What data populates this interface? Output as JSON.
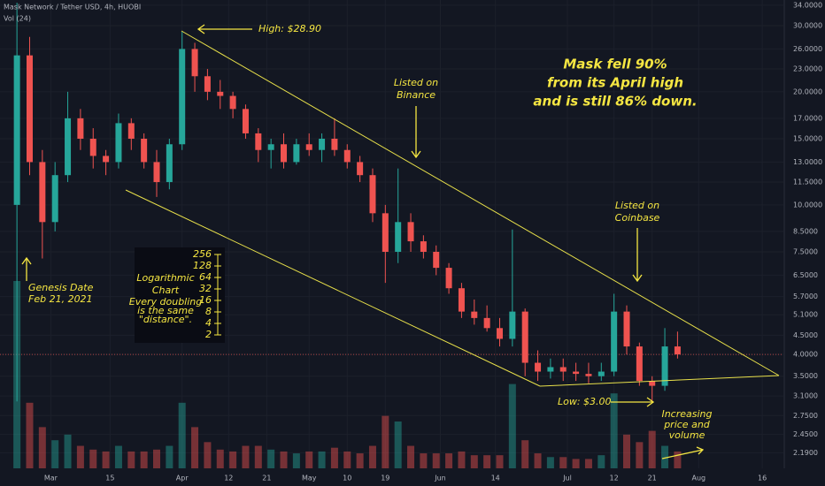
{
  "chart_data": {
    "type": "candlestick",
    "title": "Mask Network / Tether USD, 4h, HUOBI",
    "log_scale": true,
    "grid": true,
    "up_color": "#26a69a",
    "down_color": "#ef5350",
    "x": [
      "2021-02-21",
      "2021-02-24",
      "2021-02-27",
      "2021-03-02",
      "2021-03-05",
      "2021-03-08",
      "2021-03-11",
      "2021-03-14",
      "2021-03-17",
      "2021-03-20",
      "2021-03-23",
      "2021-03-26",
      "2021-03-29",
      "2021-04-01",
      "2021-04-04",
      "2021-04-07",
      "2021-04-10",
      "2021-04-13",
      "2021-04-16",
      "2021-04-19",
      "2021-04-22",
      "2021-04-25",
      "2021-04-28",
      "2021-05-01",
      "2021-05-04",
      "2021-05-07",
      "2021-05-10",
      "2021-05-13",
      "2021-05-16",
      "2021-05-19",
      "2021-05-22",
      "2021-05-25",
      "2021-05-28",
      "2021-05-31",
      "2021-06-03",
      "2021-06-06",
      "2021-06-09",
      "2021-06-12",
      "2021-06-15",
      "2021-06-18",
      "2021-06-21",
      "2021-06-24",
      "2021-06-27",
      "2021-06-30",
      "2021-07-03",
      "2021-07-06",
      "2021-07-09",
      "2021-07-12",
      "2021-07-15",
      "2021-07-18",
      "2021-07-21",
      "2021-07-24",
      "2021-07-27"
    ],
    "open": [
      10,
      25,
      13,
      9,
      12,
      17,
      15,
      13.5,
      13,
      16.5,
      15,
      13,
      11.5,
      14.5,
      26,
      22,
      20,
      19.5,
      18,
      15.5,
      14,
      14.5,
      13,
      14.5,
      14,
      15,
      14,
      13,
      12,
      9.5,
      7.5,
      9,
      8,
      7.5,
      6.8,
      6,
      5.2,
      5,
      4.7,
      4.4,
      5.2,
      3.8,
      3.6,
      3.7,
      3.6,
      3.55,
      3.5,
      3.6,
      5.2,
      4.2,
      3.4,
      3.3,
      4.2
    ],
    "high": [
      34.5,
      28,
      14,
      13,
      20,
      18,
      16,
      14,
      17.5,
      17,
      15.5,
      14,
      15,
      28.9,
      27,
      23,
      21.5,
      20,
      18.5,
      16,
      15,
      15.5,
      15,
      15.5,
      15.5,
      17,
      14.5,
      13.5,
      12.5,
      10,
      12.5,
      9.5,
      8.3,
      7.8,
      7,
      6.2,
      5.6,
      5.4,
      5,
      8.6,
      5.3,
      4.1,
      3.9,
      3.9,
      3.8,
      3.8,
      3.8,
      5.8,
      5.4,
      4.3,
      3.5,
      4.7,
      4.6
    ],
    "low": [
      3,
      12,
      7.2,
      8.5,
      11.5,
      14,
      12.5,
      12,
      12.5,
      14,
      12.5,
      10.5,
      11,
      14,
      20,
      19,
      18,
      17,
      15,
      13,
      12.5,
      12.5,
      12.8,
      13.5,
      13,
      13.5,
      12.5,
      11.5,
      9,
      6.2,
      7,
      7.5,
      7.2,
      6.5,
      5.8,
      5,
      4.8,
      4.6,
      4.2,
      4.2,
      3.5,
      3.4,
      3.45,
      3.4,
      3.4,
      3.35,
      3.4,
      3.5,
      4,
      3.3,
      3,
      3.2,
      3.9
    ],
    "close": [
      25,
      13,
      9,
      12,
      17,
      15,
      13.5,
      13,
      16.5,
      15,
      13,
      11.5,
      14.5,
      26,
      22,
      20,
      19.5,
      18,
      15.5,
      14,
      14.5,
      13,
      14.5,
      14,
      15,
      14,
      13,
      12,
      9.5,
      7.5,
      9,
      8,
      7.5,
      6.8,
      6,
      5.2,
      5,
      4.7,
      4.4,
      5.2,
      3.8,
      3.6,
      3.7,
      3.6,
      3.55,
      3.5,
      3.6,
      5.2,
      4.2,
      3.4,
      3.3,
      4.2,
      4.0
    ],
    "volume": {
      "name": "Vol (24)",
      "axis": "y2",
      "values": [
        100,
        35,
        22,
        15,
        18,
        12,
        10,
        9,
        12,
        9,
        9,
        10,
        12,
        35,
        22,
        14,
        10,
        9,
        12,
        12,
        10,
        9,
        8,
        9,
        9,
        11,
        9,
        8,
        12,
        28,
        25,
        12,
        8,
        8,
        8,
        9,
        7,
        7,
        7,
        45,
        15,
        8,
        6,
        6,
        5,
        5,
        7,
        40,
        18,
        14,
        20,
        12,
        9
      ]
    },
    "y2lim": [
      0,
      250
    ],
    "xlim": [
      "2021-02-17",
      "2021-08-21"
    ],
    "xticks": [
      {
        "value": "2021-03-01",
        "label": "Mar"
      },
      {
        "value": "2021-03-15",
        "label": "15"
      },
      {
        "value": "2021-04-01",
        "label": "Apr"
      },
      {
        "value": "2021-04-12",
        "label": "12"
      },
      {
        "value": "2021-04-21",
        "label": "21"
      },
      {
        "value": "2021-05-01",
        "label": "May"
      },
      {
        "value": "2021-05-10",
        "label": "10"
      },
      {
        "value": "2021-05-19",
        "label": "19"
      },
      {
        "value": "2021-06-01",
        "label": "Jun"
      },
      {
        "value": "2021-06-14",
        "label": "14"
      },
      {
        "value": "2021-07-01",
        "label": "Jul"
      },
      {
        "value": "2021-07-12",
        "label": "12"
      },
      {
        "value": "2021-07-21",
        "label": "21"
      },
      {
        "value": "2021-08-01",
        "label": "Aug"
      },
      {
        "value": "2021-08-16",
        "label": "16"
      }
    ],
    "ylim": [
      1.99,
      35.1
    ],
    "yticks": [
      {
        "value": 34,
        "label": "34.0000"
      },
      {
        "value": 30,
        "label": "30.0000"
      },
      {
        "value": 26,
        "label": "26.0000"
      },
      {
        "value": 23,
        "label": "23.0000"
      },
      {
        "value": 20,
        "label": "20.0000"
      },
      {
        "value": 17,
        "label": "17.0000"
      },
      {
        "value": 15,
        "label": "15.0000"
      },
      {
        "value": 13,
        "label": "13.0000"
      },
      {
        "value": 11.5,
        "label": "11.5000"
      },
      {
        "value": 10,
        "label": "10.0000"
      },
      {
        "value": 8.5,
        "label": "8.5000"
      },
      {
        "value": 7.5,
        "label": "7.5000"
      },
      {
        "value": 6.5,
        "label": "6.5000"
      },
      {
        "value": 5.7,
        "label": "5.7000"
      },
      {
        "value": 5.1,
        "label": "5.1000"
      },
      {
        "value": 4.5,
        "label": "4.5000"
      },
      {
        "value": 4,
        "label": "4.0000"
      },
      {
        "value": 3.5,
        "label": "3.5000"
      },
      {
        "value": 3.1,
        "label": "3.1000"
      },
      {
        "value": 2.75,
        "label": "2.7500"
      },
      {
        "value": 2.45,
        "label": "2.4500"
      },
      {
        "value": 2.19,
        "label": "2.1900"
      }
    ],
    "annotations": [
      {
        "lines": [
          "High: $28.90"
        ]
      },
      {
        "lines": [
          "Listed on",
          "Binance"
        ]
      },
      {
        "lines": [
          "Mask fell 90%",
          "from its April high",
          "and is still 86% down."
        ]
      },
      {
        "lines": [
          "Listed on",
          "Coinbase"
        ]
      },
      {
        "lines": [
          "Low: $3.00"
        ]
      },
      {
        "lines": [
          "Increasing",
          "price and",
          "volume"
        ]
      },
      {
        "lines": [
          "Genesis Date",
          "Feb 21, 2021"
        ]
      }
    ],
    "log_box": {
      "title": [
        "Logarithmic",
        "Chart"
      ],
      "note": [
        "Every doubling",
        "is the same",
        "\"distance\"."
      ],
      "ticks": [
        256,
        128,
        64,
        32,
        16,
        8,
        4,
        2
      ]
    }
  }
}
